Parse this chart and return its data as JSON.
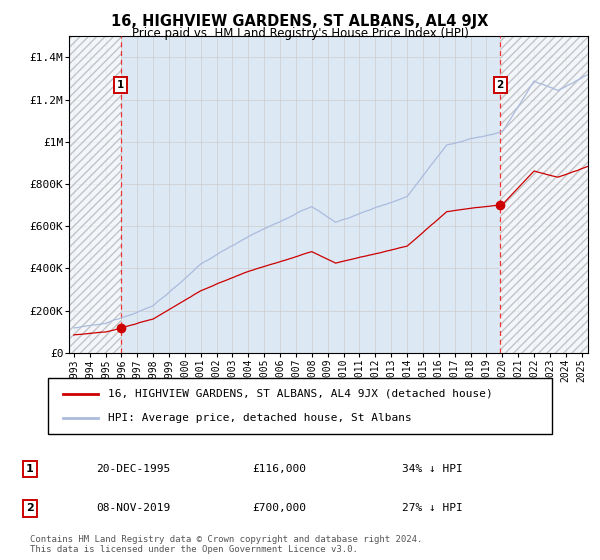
{
  "title": "16, HIGHVIEW GARDENS, ST ALBANS, AL4 9JX",
  "subtitle": "Price paid vs. HM Land Registry's House Price Index (HPI)",
  "hpi_label": "HPI: Average price, detached house, St Albans",
  "property_label": "16, HIGHVIEW GARDENS, ST ALBANS, AL4 9JX (detached house)",
  "sale1_date": "20-DEC-1995",
  "sale1_price": 116000,
  "sale1_hpi_pct": "34% ↓ HPI",
  "sale2_date": "08-NOV-2019",
  "sale2_price": 700000,
  "sale2_hpi_pct": "27% ↓ HPI",
  "footer": "Contains HM Land Registry data © Crown copyright and database right 2024.\nThis data is licensed under the Open Government Licence v3.0.",
  "ylim": [
    0,
    1500000
  ],
  "yticks": [
    0,
    200000,
    400000,
    600000,
    800000,
    1000000,
    1200000,
    1400000
  ],
  "ytick_labels": [
    "£0",
    "£200K",
    "£400K",
    "£600K",
    "£800K",
    "£1M",
    "£1.2M",
    "£1.4M"
  ],
  "hpi_color": "#aabbdd",
  "property_color": "#cc0000",
  "marker_color": "#cc0000",
  "grid_color": "#cccccc",
  "bg_color": "#dde8f5",
  "sale1_year": 1995.97,
  "sale2_year": 2019.86,
  "xmin": 1993.0,
  "xmax": 2025.4
}
